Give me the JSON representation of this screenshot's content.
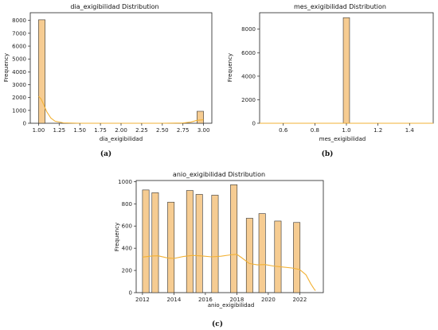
{
  "colors": {
    "bar": "#f6cc92",
    "edge": "#333333",
    "kde": "#f2b134"
  },
  "chart_data": [
    {
      "id": "a",
      "type": "bar",
      "title": "dia_exigibilidad Distribution",
      "xlabel": "dia_exigibilidad",
      "ylabel": "Frequency",
      "caption": "(a)",
      "xlim": [
        0.9,
        3.1
      ],
      "ylim": [
        0,
        8600
      ],
      "xticks": [
        1.0,
        1.25,
        1.5,
        1.75,
        2.0,
        2.25,
        2.5,
        2.75,
        3.0
      ],
      "xtick_labels": [
        "1.00",
        "1.25",
        "1.50",
        "1.75",
        "2.00",
        "2.25",
        "2.50",
        "2.75",
        "3.00"
      ],
      "yticks": [
        0,
        1000,
        2000,
        3000,
        4000,
        5000,
        6000,
        7000,
        8000
      ],
      "ytick_labels": [
        "0",
        "1000",
        "2000",
        "3000",
        "4000",
        "5000",
        "6000",
        "7000",
        "8000"
      ],
      "bars": [
        {
          "x0": 1.0,
          "x1": 1.08,
          "value": 8050
        },
        {
          "x0": 2.92,
          "x1": 3.0,
          "value": 930
        }
      ],
      "kde": [
        [
          1.0,
          2100
        ],
        [
          1.03,
          1900
        ],
        [
          1.06,
          1500
        ],
        [
          1.1,
          900
        ],
        [
          1.15,
          400
        ],
        [
          1.2,
          160
        ],
        [
          1.3,
          30
        ],
        [
          1.5,
          0
        ],
        [
          2.5,
          0
        ],
        [
          2.75,
          20
        ],
        [
          2.85,
          100
        ],
        [
          2.92,
          230
        ],
        [
          3.0,
          270
        ]
      ]
    },
    {
      "id": "b",
      "type": "bar",
      "title": "mes_exigibilidad Distribution",
      "xlabel": "mes_exigibilidad",
      "ylabel": "Frequency",
      "caption": "(b)",
      "xlim": [
        0.45,
        1.55
      ],
      "ylim": [
        0,
        9400
      ],
      "xticks": [
        0.6,
        0.8,
        1.0,
        1.2,
        1.4
      ],
      "xtick_labels": [
        "0.6",
        "0.8",
        "1.0",
        "1.2",
        "1.4"
      ],
      "yticks": [
        0,
        2000,
        4000,
        6000,
        8000
      ],
      "ytick_labels": [
        "0",
        "2000",
        "4000",
        "6000",
        "8000"
      ],
      "bars": [
        {
          "x0": 0.98,
          "x1": 1.02,
          "value": 8980
        }
      ],
      "kde": [
        [
          0.45,
          0
        ],
        [
          1.55,
          0
        ]
      ]
    },
    {
      "id": "c",
      "type": "bar",
      "title": "anio_exigibilidad Distribution",
      "xlabel": "anio_exigibilidad",
      "ylabel": "Frequency",
      "caption": "(c)",
      "xlim": [
        2011.6,
        2023.5
      ],
      "ylim": [
        0,
        1010
      ],
      "xticks": [
        2012,
        2014,
        2016,
        2018,
        2020,
        2022
      ],
      "xtick_labels": [
        "2012",
        "2014",
        "2016",
        "2018",
        "2020",
        "2022"
      ],
      "yticks": [
        0,
        200,
        400,
        600,
        800,
        1000
      ],
      "ytick_labels": [
        "0",
        "200",
        "400",
        "600",
        "800",
        "1000"
      ],
      "bars": [
        {
          "x0": 2012.0,
          "x1": 2012.42,
          "value": 925
        },
        {
          "x0": 2012.6,
          "x1": 2013.02,
          "value": 900
        },
        {
          "x0": 2013.6,
          "x1": 2014.02,
          "value": 815
        },
        {
          "x0": 2014.8,
          "x1": 2015.22,
          "value": 920
        },
        {
          "x0": 2015.4,
          "x1": 2015.82,
          "value": 885
        },
        {
          "x0": 2016.4,
          "x1": 2016.82,
          "value": 878
        },
        {
          "x0": 2017.6,
          "x1": 2018.02,
          "value": 972
        },
        {
          "x0": 2018.6,
          "x1": 2019.02,
          "value": 670
        },
        {
          "x0": 2019.4,
          "x1": 2019.82,
          "value": 712
        },
        {
          "x0": 2020.4,
          "x1": 2020.82,
          "value": 645
        },
        {
          "x0": 2021.6,
          "x1": 2022.02,
          "value": 632
        }
      ],
      "kde": [
        [
          2012.0,
          320
        ],
        [
          2012.6,
          330
        ],
        [
          2013.0,
          332
        ],
        [
          2013.6,
          312
        ],
        [
          2014.0,
          308
        ],
        [
          2014.6,
          325
        ],
        [
          2015.2,
          335
        ],
        [
          2015.8,
          330
        ],
        [
          2016.4,
          322
        ],
        [
          2017.0,
          328
        ],
        [
          2017.6,
          340
        ],
        [
          2018.0,
          345
        ],
        [
          2018.3,
          315
        ],
        [
          2018.8,
          262
        ],
        [
          2019.3,
          250
        ],
        [
          2019.8,
          253
        ],
        [
          2020.3,
          240
        ],
        [
          2020.8,
          232
        ],
        [
          2021.5,
          222
        ],
        [
          2022.0,
          208
        ],
        [
          2022.4,
          160
        ],
        [
          2022.7,
          80
        ],
        [
          2022.9,
          35
        ],
        [
          2023.0,
          18
        ]
      ]
    }
  ]
}
